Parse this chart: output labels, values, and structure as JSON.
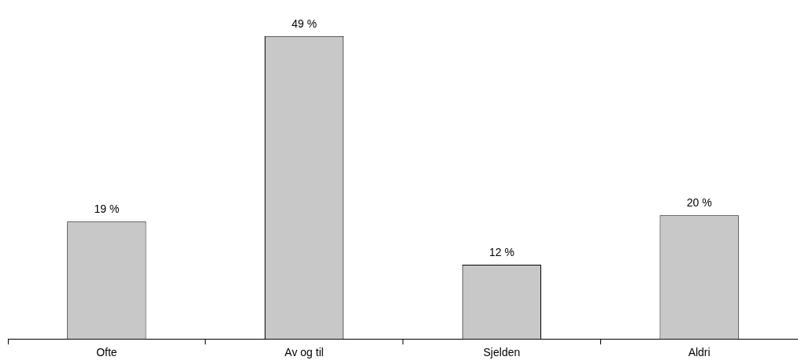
{
  "chart_data": {
    "type": "bar",
    "categories": [
      "Ofte",
      "Av og til",
      "Sjelden",
      "Aldri"
    ],
    "values": [
      19,
      49,
      12,
      20
    ],
    "value_labels": [
      "19 %",
      "49 %",
      "12 %",
      "20 %"
    ],
    "color": "#c8c8c8",
    "tick_labels": "x",
    "grid": false,
    "legend": false
  }
}
